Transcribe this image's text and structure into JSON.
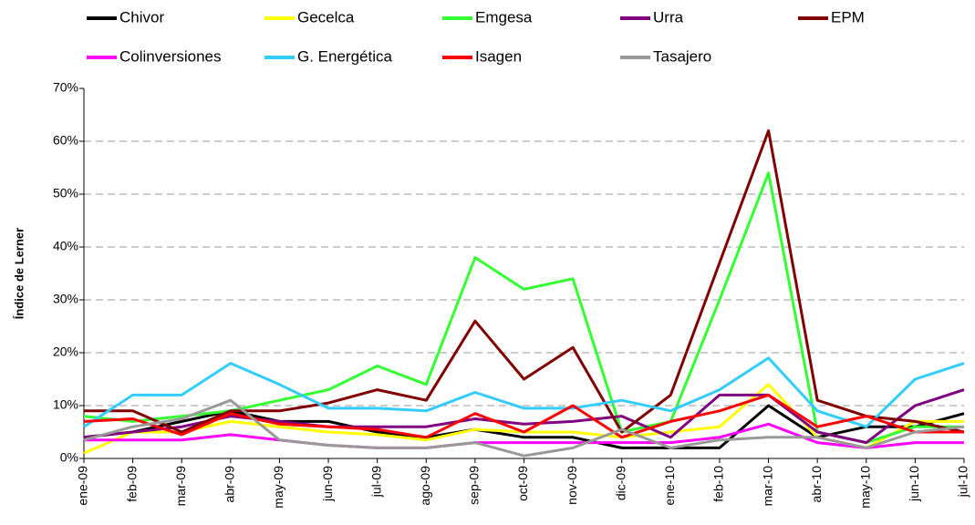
{
  "chart_data": {
    "type": "line",
    "y_label": "Índice de Lerner",
    "categories": [
      "ene-09",
      "feb-09",
      "mar-09",
      "abr-09",
      "may-09",
      "jun-09",
      "jul-09",
      "ago-09",
      "sep-09",
      "oct-09",
      "nov-09",
      "dic-09",
      "ene-10",
      "feb-10",
      "mar-10",
      "abr-10",
      "may-10",
      "jun-10",
      "jul-10"
    ],
    "series": [
      {
        "name": "Chivor",
        "color": "#000000",
        "values": [
          4,
          5,
          7,
          9,
          7,
          7,
          5,
          4,
          5.5,
          4,
          4,
          2,
          2,
          2,
          10,
          4,
          6,
          6,
          8.5
        ]
      },
      {
        "name": "Gecelca",
        "color": "#ffff00",
        "values": [
          1,
          5,
          5,
          7,
          6,
          5,
          4.5,
          3.5,
          5.5,
          5,
          5,
          4,
          5,
          6,
          14,
          4,
          2,
          7,
          7
        ]
      },
      {
        "name": "Emgesa",
        "color": "#33ff33",
        "values": [
          8,
          7,
          8,
          9,
          11,
          13,
          17.5,
          14,
          38,
          32,
          34,
          5,
          7,
          30,
          54,
          5,
          3,
          6,
          6
        ]
      },
      {
        "name": "Urra",
        "color": "#800080",
        "values": [
          4,
          5,
          6,
          8,
          7,
          6,
          6,
          6,
          7.5,
          6.5,
          7,
          8,
          4,
          12,
          12,
          5,
          3,
          10,
          13
        ]
      },
      {
        "name": "EPM",
        "color": "#800000",
        "values": [
          9,
          9,
          5,
          9,
          9,
          10.5,
          13,
          11,
          26,
          15,
          21,
          5,
          12,
          37,
          62,
          11,
          8,
          7,
          5
        ]
      },
      {
        "name": "Colinversiones",
        "color": "#ff00ff",
        "values": [
          3.5,
          3.5,
          3.5,
          4.5,
          3.5,
          2.5,
          2,
          2,
          3,
          3,
          3,
          3,
          3,
          4,
          6.5,
          3,
          2,
          3,
          3
        ]
      },
      {
        "name": "G. Energética",
        "color": "#33ccff",
        "values": [
          6,
          12,
          12,
          18,
          14,
          9.5,
          9.5,
          9,
          12.5,
          9.5,
          9.5,
          11,
          9,
          13,
          19,
          9,
          6,
          15,
          18
        ]
      },
      {
        "name": "Isagen",
        "color": "#ff0000",
        "values": [
          7,
          7.5,
          4.5,
          8.5,
          6.5,
          6,
          5.5,
          4,
          8.5,
          5,
          10,
          4,
          7,
          9,
          12,
          6,
          8,
          5,
          5
        ]
      },
      {
        "name": "Tasajero",
        "color": "#999999",
        "values": [
          3.5,
          6,
          7.5,
          11,
          3.5,
          2.5,
          2,
          2,
          3,
          0.5,
          2,
          5.5,
          2,
          3.5,
          4,
          4,
          2,
          5,
          6
        ]
      }
    ],
    "ylim": [
      0,
      70
    ],
    "yticks": [
      {
        "value": 0,
        "label": "0%"
      },
      {
        "value": 10,
        "label": "10%"
      },
      {
        "value": 20,
        "label": "20%"
      },
      {
        "value": 30,
        "label": "30%"
      },
      {
        "value": 40,
        "label": "40%"
      },
      {
        "value": 50,
        "label": "50%"
      },
      {
        "value": 60,
        "label": "60%"
      },
      {
        "value": 70,
        "label": "70%"
      }
    ],
    "grid": true
  }
}
